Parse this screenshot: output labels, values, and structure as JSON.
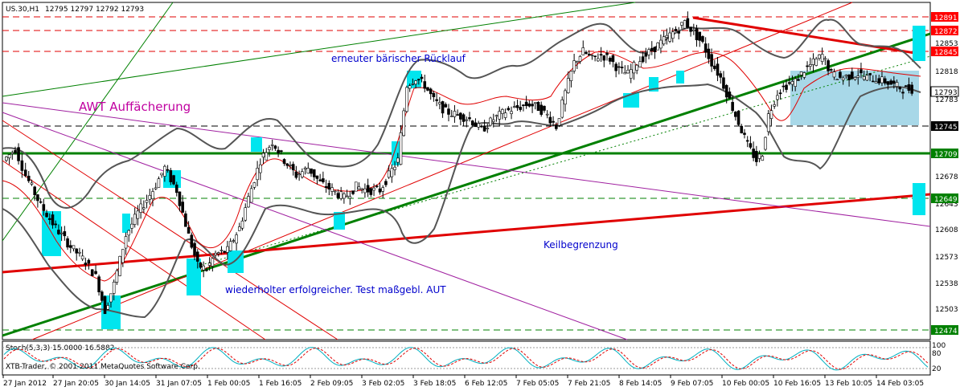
{
  "header": {
    "symbol": "US.30,H1",
    "ohlc": "12795 12797 12792 12793"
  },
  "annotations": {
    "fan_label": "AWT Auffächerung",
    "bearish_label": "erneuter bärischer Rücklauf",
    "wedge_label": "Keilbegrenzung",
    "test_label": "wiederholter erfolgreicher. Test maßgebl. AUT"
  },
  "indicator": {
    "label": "Stoch(5,3,3) 15.0000 16.5882",
    "levels": [
      "100",
      "80",
      "20"
    ],
    "copyright": "XTB-Trader, © 2001-2011 MetaQuotes Software Corp."
  },
  "colors": {
    "candles": "#000000",
    "bollinger": "#555555",
    "trend_green": "#008000",
    "resistance_red": "#e00000",
    "fan_magenta": "#a020a0",
    "highlight_cyan": "#00e5ee",
    "zone_blue": "#a8d8e8",
    "price_tag_red": "#ff0000",
    "annotation_blue": "#0000cc",
    "annotation_magenta": "#c000a0"
  },
  "chart_data": {
    "type": "candlestick",
    "price_axis_ticks": [
      "12853",
      "12818",
      "12783",
      "12745",
      "12678",
      "12643",
      "12608",
      "12573",
      "12538",
      "12503"
    ],
    "price_tags": [
      {
        "value": "12891",
        "style": "red"
      },
      {
        "value": "12872",
        "style": "red"
      },
      {
        "value": "12845",
        "style": "red"
      },
      {
        "value": "12793",
        "style": "black"
      },
      {
        "value": "12745",
        "style": "black"
      },
      {
        "value": "12709",
        "style": "green"
      },
      {
        "value": "12649",
        "style": "green"
      },
      {
        "value": "12474",
        "style": "green"
      }
    ],
    "time_axis_labels": [
      "27 Jan 2012",
      "27 Jan 20:05",
      "30 Jan 14:05",
      "31 Jan 07:05",
      "1 Feb 00:05",
      "1 Feb 16:05",
      "2 Feb 09:05",
      "3 Feb 02:05",
      "3 Feb 18:05",
      "6 Feb 12:05",
      "7 Feb 05:05",
      "7 Feb 21:05",
      "8 Feb 14:05",
      "9 Feb 07:05",
      "10 Feb 00:05",
      "10 Feb 16:05",
      "13 Feb 10:05",
      "14 Feb 03:05"
    ],
    "close_path": [
      [
        0,
        12700
      ],
      [
        8,
        12715
      ],
      [
        15,
        12680
      ],
      [
        25,
        12640
      ],
      [
        35,
        12610
      ],
      [
        45,
        12585
      ],
      [
        55,
        12565
      ],
      [
        62,
        12545
      ],
      [
        68,
        12500
      ],
      [
        74,
        12535
      ],
      [
        82,
        12600
      ],
      [
        90,
        12630
      ],
      [
        100,
        12660
      ],
      [
        108,
        12690
      ],
      [
        116,
        12660
      ],
      [
        124,
        12600
      ],
      [
        130,
        12560
      ],
      [
        136,
        12555
      ],
      [
        142,
        12575
      ],
      [
        150,
        12580
      ],
      [
        158,
        12610
      ],
      [
        164,
        12650
      ],
      [
        172,
        12700
      ],
      [
        180,
        12725
      ],
      [
        188,
        12700
      ],
      [
        196,
        12680
      ],
      [
        204,
        12690
      ],
      [
        212,
        12670
      ],
      [
        220,
        12660
      ],
      [
        228,
        12650
      ],
      [
        236,
        12665
      ],
      [
        244,
        12660
      ],
      [
        252,
        12660
      ],
      [
        258,
        12680
      ],
      [
        264,
        12700
      ],
      [
        270,
        12800
      ],
      [
        276,
        12810
      ],
      [
        282,
        12800
      ],
      [
        288,
        12780
      ],
      [
        296,
        12765
      ],
      [
        304,
        12760
      ],
      [
        312,
        12755
      ],
      [
        320,
        12740
      ],
      [
        328,
        12755
      ],
      [
        336,
        12765
      ],
      [
        344,
        12770
      ],
      [
        352,
        12775
      ],
      [
        358,
        12770
      ],
      [
        364,
        12760
      ],
      [
        370,
        12745
      ],
      [
        376,
        12790
      ],
      [
        382,
        12830
      ],
      [
        388,
        12845
      ],
      [
        394,
        12835
      ],
      [
        400,
        12840
      ],
      [
        406,
        12835
      ],
      [
        412,
        12820
      ],
      [
        418,
        12815
      ],
      [
        424,
        12830
      ],
      [
        430,
        12840
      ],
      [
        436,
        12850
      ],
      [
        442,
        12860
      ],
      [
        448,
        12870
      ],
      [
        452,
        12875
      ],
      [
        456,
        12885
      ],
      [
        462,
        12870
      ],
      [
        468,
        12855
      ],
      [
        474,
        12830
      ],
      [
        480,
        12810
      ],
      [
        486,
        12780
      ],
      [
        492,
        12750
      ],
      [
        498,
        12720
      ],
      [
        504,
        12700
      ],
      [
        508,
        12710
      ],
      [
        512,
        12760
      ],
      [
        518,
        12790
      ],
      [
        524,
        12800
      ],
      [
        530,
        12805
      ],
      [
        536,
        12820
      ],
      [
        542,
        12830
      ],
      [
        548,
        12840
      ],
      [
        554,
        12815
      ],
      [
        560,
        12810
      ],
      [
        566,
        12812
      ],
      [
        572,
        12815
      ],
      [
        578,
        12810
      ],
      [
        584,
        12808
      ],
      [
        590,
        12805
      ],
      [
        596,
        12800
      ],
      [
        602,
        12795
      ],
      [
        608,
        12795
      ]
    ],
    "overlays": [
      "candlesticks",
      "bollinger bands",
      "trend channel lines",
      "fan lines",
      "horizontal levels"
    ]
  }
}
